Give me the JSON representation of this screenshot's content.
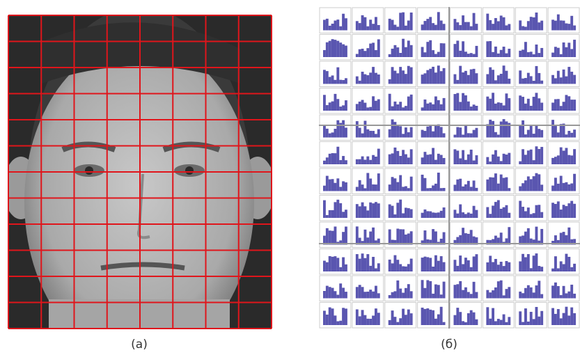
{
  "figure": {
    "panels": [
      {
        "label": "(a)"
      },
      {
        "label": "(б)"
      }
    ]
  }
}
